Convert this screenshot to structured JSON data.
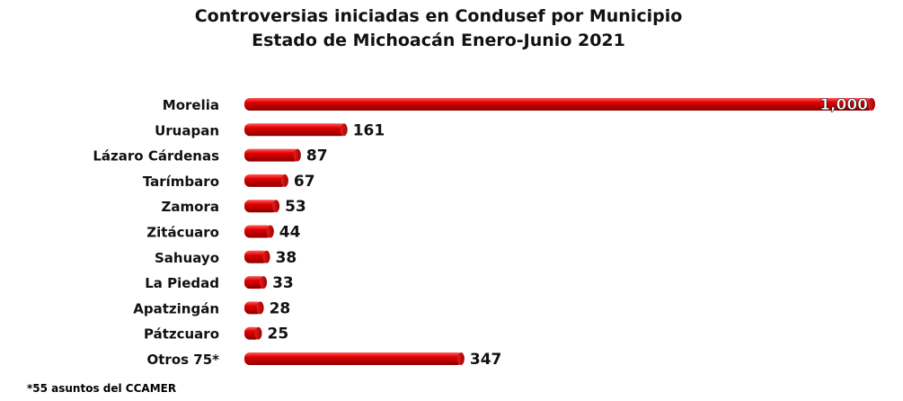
{
  "chart_data": {
    "type": "bar",
    "orientation": "horizontal",
    "title": "Controversias iniciadas en Condusef por Municipio",
    "subtitle": "Estado de Michoacán Enero-Junio 2021",
    "categories": [
      "Morelia",
      "Uruapan",
      "Lázaro Cárdenas",
      "Tarímbaro",
      "Zamora",
      "Zitácuaro",
      "Sahuayo",
      "La Piedad",
      "Apatzingán",
      "Pátzcuaro",
      "Otros 75*"
    ],
    "values": [
      1000,
      161,
      87,
      67,
      53,
      44,
      38,
      33,
      28,
      25,
      347
    ],
    "value_labels": [
      "1,000",
      "161",
      "87",
      "67",
      "53",
      "44",
      "38",
      "33",
      "28",
      "25",
      "347"
    ],
    "bar_color": "#cc0000",
    "grid": false,
    "legend": "none"
  },
  "footnote": "*55 asuntos del CCAMER"
}
